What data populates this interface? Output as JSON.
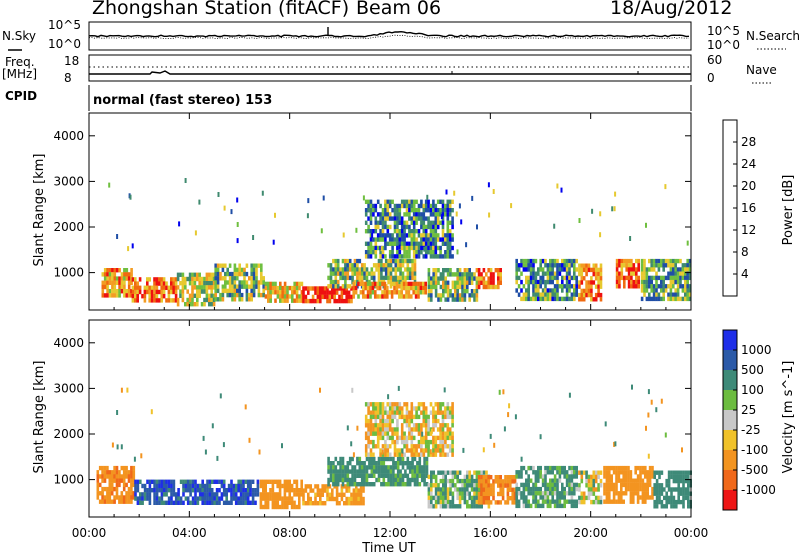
{
  "header": {
    "title": "Zhongshan Station (fitACF)",
    "beam": "Beam 06",
    "date": "18/Aug/2012"
  },
  "params": {
    "nsky_label": "N.Sky",
    "nsky_top": "10^5",
    "nsky_bottom": "10^0",
    "nsearch_label": "N.Search",
    "nsearch_top": "10^5",
    "nsearch_bottom": "10^0",
    "freq_label_1": "Freq.",
    "freq_label_2": "[MHz]",
    "freq_top": "18",
    "freq_bottom": "8",
    "nave_label": "Nave",
    "nave_top": "60",
    "nave_bottom": "0",
    "cpid_label": "CPID",
    "cpid_value": "normal (fast stereo) 153"
  },
  "colors": {
    "power_scale": [
      "#0000ee",
      "#1f4ea6",
      "#3f8a6f",
      "#6fbf3f",
      "#e6c92f",
      "#f39c22",
      "#f06a10",
      "#ee1010"
    ],
    "velocity_scale": [
      "#1e2ee8",
      "#2b5aa8",
      "#3e8a78",
      "#6cbc3f",
      "#c8c8c8",
      "#f0c22a",
      "#f39420",
      "#f0681a",
      "#ee1515"
    ]
  },
  "chart_data": [
    {
      "type": "heatmap",
      "title": "",
      "xlabel": "",
      "ylabel": "Slant Range [km]",
      "x_tick_labels": [
        "00:00",
        "04:00",
        "08:00",
        "12:00",
        "16:00",
        "20:00",
        "00:00"
      ],
      "y_tick_labels": [
        "1000",
        "2000",
        "3000",
        "4000"
      ],
      "xlim_hours": [
        0,
        24
      ],
      "ylim_km": [
        180,
        4500
      ],
      "colorbar": {
        "label": "Power [dB]",
        "tick_labels": [
          "4",
          "8",
          "12",
          "16",
          "20",
          "24",
          "28"
        ],
        "range": [
          0,
          32
        ]
      },
      "series": [
        {
          "values": [
            [
              0.5,
              1.7,
              500,
              1100,
              22
            ],
            [
              1.7,
              3.5,
              350,
              900,
              24
            ],
            [
              3.5,
              5.0,
              300,
              1000,
              16
            ],
            [
              5.0,
              7.0,
              350,
              1200,
              14
            ],
            [
              7.0,
              8.5,
              300,
              800,
              20
            ],
            [
              8.5,
              10.5,
              300,
              700,
              30
            ],
            [
              9.5,
              13.0,
              700,
              1300,
              14
            ],
            [
              10.5,
              13.5,
              400,
              800,
              22
            ],
            [
              11.0,
              14.5,
              1300,
              2600,
              10
            ],
            [
              13.5,
              15.5,
              400,
              1100,
              14
            ],
            [
              15.5,
              16.5,
              600,
              1100,
              26
            ],
            [
              17.0,
              19.5,
              350,
              1300,
              10
            ],
            [
              19.5,
              20.5,
              400,
              1200,
              24
            ],
            [
              21.0,
              22.0,
              700,
              1300,
              26
            ],
            [
              22.0,
              24.0,
              350,
              1300,
              12
            ]
          ]
        }
      ]
    },
    {
      "type": "heatmap",
      "title": "",
      "xlabel": "Time UT",
      "ylabel": "Slant Range [km]",
      "x_tick_labels": [
        "00:00",
        "04:00",
        "08:00",
        "12:00",
        "16:00",
        "20:00",
        "00:00"
      ],
      "y_tick_labels": [
        "1000",
        "2000",
        "3000",
        "4000"
      ],
      "xlim_hours": [
        0,
        24
      ],
      "ylim_km": [
        180,
        4500
      ],
      "colorbar": {
        "label": "Velocity [m s^-1]",
        "tick_labels": [
          "1000",
          "500",
          "100",
          "25",
          "-25",
          "-100",
          "-500",
          "-1000"
        ]
      },
      "series": [
        {
          "values": [
            [
              0.3,
              1.8,
              500,
              1300,
              -400
            ],
            [
              1.8,
              6.8,
              450,
              1000,
              800
            ],
            [
              6.8,
              8.5,
              400,
              1000,
              -300
            ],
            [
              8.5,
              11.0,
              400,
              900,
              -200
            ],
            [
              9.5,
              13.5,
              900,
              1500,
              200
            ],
            [
              11.0,
              14.5,
              1500,
              2700,
              -60
            ],
            [
              13.5,
              16.0,
              400,
              1200,
              100
            ],
            [
              15.5,
              17.0,
              500,
              1100,
              -400
            ],
            [
              17.0,
              19.5,
              400,
              1300,
              150
            ],
            [
              19.5,
              20.5,
              500,
              1200,
              0
            ],
            [
              20.5,
              22.5,
              500,
              1300,
              -300
            ],
            [
              22.5,
              24.0,
              400,
              1200,
              300
            ]
          ]
        }
      ]
    }
  ]
}
